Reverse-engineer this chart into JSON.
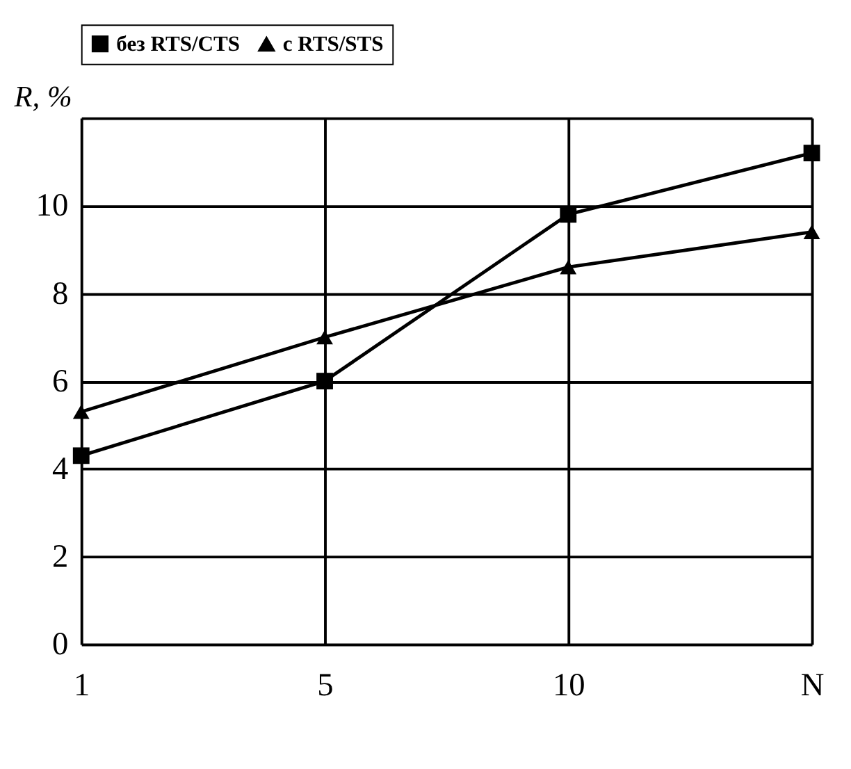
{
  "chart_data": {
    "type": "line",
    "ylabel": "R, %",
    "categories": [
      "1",
      "5",
      "10",
      "N"
    ],
    "series": [
      {
        "name": "без RTS/CTS",
        "color": "#000000",
        "marker": "square",
        "values": [
          4.3,
          6.0,
          9.8,
          11.2
        ]
      },
      {
        "name": "с RTS/STS",
        "color": "#000000",
        "marker": "triangle",
        "values": [
          5.3,
          7.0,
          8.6,
          9.4
        ]
      }
    ],
    "ylim": [
      0,
      12
    ],
    "yticks": [
      0,
      2,
      4,
      6,
      8,
      10,
      {
        "value": 12,
        "label": null
      }
    ],
    "grid": true,
    "legend": "top",
    "line_style": "solid"
  }
}
